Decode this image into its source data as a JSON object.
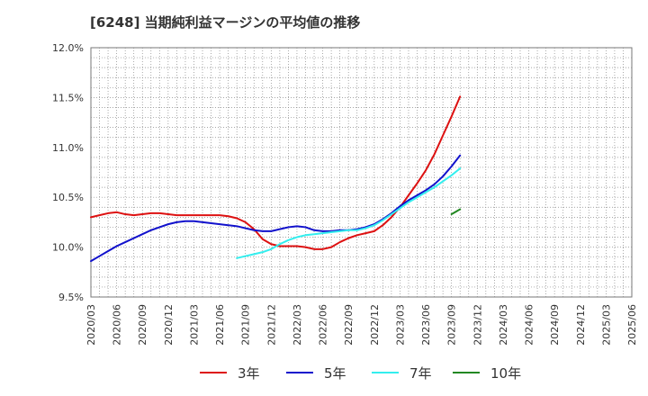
{
  "chart_data": {
    "type": "line",
    "title": "[6248]  当期純利益マージンの平均値の推移",
    "xlabel": "",
    "ylabel": "",
    "x_ticks": [
      "2020/03",
      "2020/06",
      "2020/09",
      "2020/12",
      "2021/03",
      "2021/06",
      "2021/09",
      "2021/12",
      "2022/03",
      "2022/06",
      "2022/09",
      "2022/12",
      "2023/03",
      "2023/06",
      "2023/09",
      "2023/12",
      "2024/03",
      "2024/06",
      "2024/09",
      "2024/12",
      "2025/03",
      "2025/06"
    ],
    "y_ticks": [
      "9.5%",
      "10.0%",
      "10.5%",
      "11.0%",
      "11.5%",
      "12.0%"
    ],
    "ylim": [
      9.5,
      12.0
    ],
    "grid": true,
    "legend_position": "bottom",
    "series": [
      {
        "name": "3年",
        "color": "#dd1111",
        "values": [
          10.3,
          10.32,
          10.34,
          10.35,
          10.33,
          10.32,
          10.33,
          10.34,
          10.34,
          10.33,
          10.32,
          10.32,
          10.32,
          10.32,
          10.32,
          10.32,
          10.31,
          10.29,
          10.25,
          10.18,
          10.08,
          10.03,
          10.01,
          10.01,
          10.01,
          10.0,
          9.98,
          9.98,
          10.0,
          10.05,
          10.09,
          10.12,
          10.14,
          10.16,
          10.22,
          10.3,
          10.4,
          10.52,
          10.64,
          10.77,
          10.93,
          11.12,
          11.31,
          11.51
        ]
      },
      {
        "name": "5年",
        "color": "#1111cc",
        "values": [
          9.86,
          9.91,
          9.96,
          10.01,
          10.05,
          10.09,
          10.13,
          10.17,
          10.2,
          10.23,
          10.25,
          10.26,
          10.26,
          10.25,
          10.24,
          10.23,
          10.22,
          10.21,
          10.19,
          10.17,
          10.16,
          10.16,
          10.18,
          10.2,
          10.21,
          10.2,
          10.17,
          10.16,
          10.16,
          10.17,
          10.17,
          10.18,
          10.2,
          10.23,
          10.28,
          10.34,
          10.41,
          10.47,
          10.52,
          10.57,
          10.63,
          10.71,
          10.81,
          10.92
        ]
      },
      {
        "name": "7年",
        "color": "#33eeee",
        "values": [
          null,
          null,
          null,
          null,
          null,
          null,
          null,
          null,
          null,
          null,
          null,
          null,
          null,
          null,
          null,
          null,
          null,
          9.89,
          9.91,
          9.93,
          9.95,
          9.98,
          10.03,
          10.07,
          10.1,
          10.12,
          10.13,
          10.14,
          10.15,
          10.16,
          10.17,
          10.17,
          10.19,
          10.22,
          10.27,
          10.33,
          10.39,
          10.45,
          10.5,
          10.55,
          10.6,
          10.66,
          10.72,
          10.79
        ]
      },
      {
        "name": "10年",
        "color": "#228822",
        "values": [
          null,
          null,
          null,
          null,
          null,
          null,
          null,
          null,
          null,
          null,
          null,
          null,
          null,
          null,
          null,
          null,
          null,
          null,
          null,
          null,
          null,
          null,
          null,
          null,
          null,
          null,
          null,
          null,
          null,
          null,
          null,
          null,
          null,
          null,
          null,
          null,
          null,
          null,
          null,
          null,
          null,
          null,
          10.33,
          10.38
        ]
      }
    ]
  }
}
